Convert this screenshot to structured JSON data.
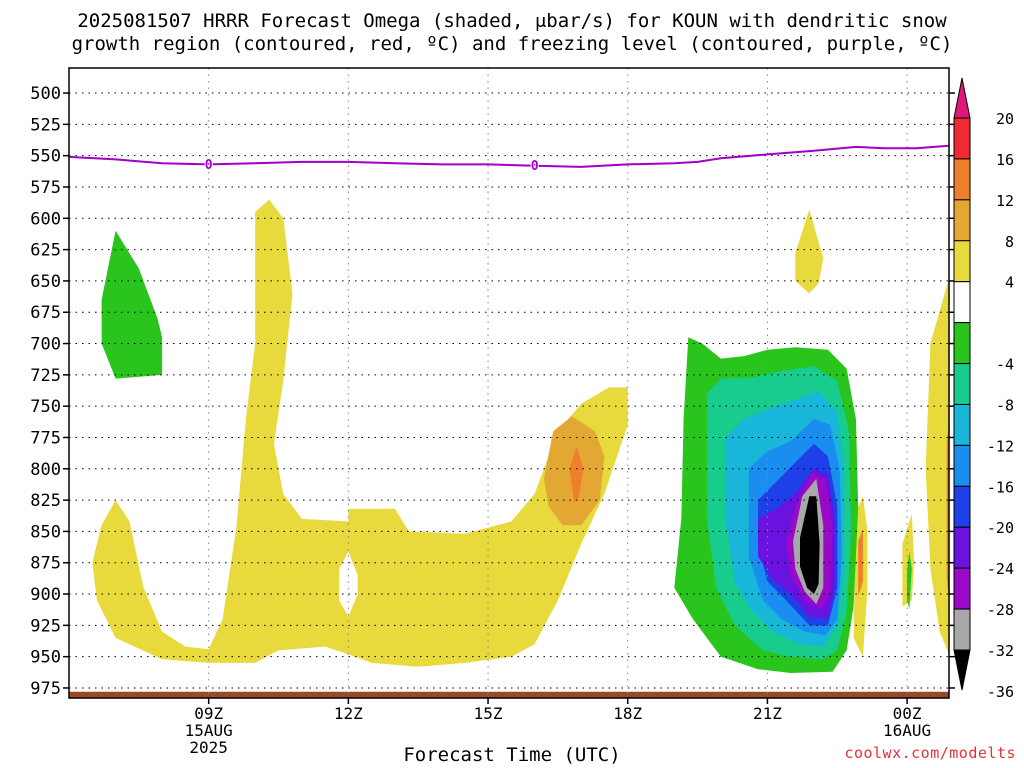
{
  "chart_data": {
    "type": "heatmap",
    "title_line1": "2025081507 HRRR Forecast Omega (shaded, μbar/s) for KOUN with dendritic snow",
    "title_line2": "growth region (contoured, red, ºC) and freezing level (contoured, purple, ºC)",
    "xlabel": "Forecast Time (UTC)",
    "ylabel": "",
    "y_axis": {
      "ticks": [
        500,
        525,
        550,
        575,
        600,
        625,
        650,
        675,
        700,
        725,
        750,
        775,
        800,
        825,
        850,
        875,
        900,
        925,
        950,
        975
      ],
      "range": [
        480,
        983
      ],
      "inverted": true
    },
    "x_axis": {
      "range_hours": [
        6.0,
        24.9
      ],
      "ticks": [
        {
          "h": 9,
          "lines": [
            "09Z",
            "15AUG",
            "2025"
          ]
        },
        {
          "h": 12,
          "lines": [
            "12Z"
          ]
        },
        {
          "h": 15,
          "lines": [
            "15Z"
          ]
        },
        {
          "h": 18,
          "lines": [
            "18Z"
          ]
        },
        {
          "h": 21,
          "lines": [
            "21Z"
          ]
        },
        {
          "h": 24,
          "lines": [
            "00Z",
            "16AUG"
          ]
        }
      ]
    },
    "grid": true,
    "freezing_level": {
      "label": "0",
      "color": "#a000c8",
      "points": [
        [
          6.0,
          551
        ],
        [
          7.0,
          553
        ],
        [
          8.0,
          556
        ],
        [
          9.0,
          557
        ],
        [
          10.0,
          556
        ],
        [
          11.0,
          555
        ],
        [
          12.0,
          555
        ],
        [
          13.0,
          556
        ],
        [
          14.0,
          557
        ],
        [
          15.0,
          557
        ],
        [
          16.0,
          558
        ],
        [
          17.0,
          559
        ],
        [
          18.0,
          557
        ],
        [
          19.0,
          556
        ],
        [
          19.5,
          555
        ],
        [
          20.0,
          552
        ],
        [
          21.0,
          549
        ],
        [
          22.0,
          546
        ],
        [
          22.9,
          543
        ],
        [
          23.5,
          544
        ],
        [
          24.2,
          544
        ],
        [
          24.9,
          542
        ]
      ],
      "label_positions": [
        [
          9.0,
          557
        ],
        [
          16.0,
          558
        ]
      ]
    },
    "omega_regions": [
      {
        "level": "0 to 4",
        "color": "#ffffff",
        "points": []
      },
      {
        "level": "4 to 8",
        "color": "#e8da3c",
        "points": [
          [
            6.5,
            875
          ],
          [
            6.7,
            845
          ],
          [
            7.0,
            825
          ],
          [
            7.3,
            842
          ],
          [
            7.6,
            895
          ],
          [
            8.0,
            930
          ],
          [
            8.5,
            942
          ],
          [
            9.0,
            944
          ],
          [
            9.3,
            920
          ],
          [
            9.6,
            845
          ],
          [
            9.8,
            760
          ],
          [
            10.0,
            700
          ],
          [
            10.0,
            595
          ],
          [
            10.3,
            585
          ],
          [
            10.6,
            600
          ],
          [
            10.8,
            660
          ],
          [
            10.6,
            730
          ],
          [
            10.4,
            780
          ],
          [
            10.6,
            820
          ],
          [
            11.0,
            840
          ],
          [
            12.0,
            842
          ],
          [
            12.0,
            832
          ],
          [
            13.0,
            832
          ],
          [
            13.3,
            850
          ],
          [
            14.5,
            852
          ],
          [
            15.5,
            842
          ],
          [
            16.0,
            820
          ],
          [
            16.5,
            770
          ],
          [
            17.0,
            748
          ],
          [
            17.6,
            735
          ],
          [
            18.0,
            735
          ],
          [
            18.0,
            765
          ],
          [
            17.5,
            820
          ],
          [
            17.0,
            860
          ],
          [
            16.5,
            905
          ],
          [
            16.0,
            940
          ],
          [
            15.5,
            950
          ],
          [
            14.5,
            955
          ],
          [
            13.5,
            958
          ],
          [
            12.5,
            955
          ],
          [
            12.0,
            948
          ],
          [
            11.5,
            942
          ],
          [
            10.5,
            945
          ],
          [
            10.0,
            955
          ],
          [
            9.0,
            955
          ],
          [
            8.0,
            952
          ],
          [
            7.0,
            935
          ],
          [
            6.6,
            905
          ]
        ]
      },
      {
        "level": "4 to 8",
        "color": "#e8da3c",
        "points": [
          [
            21.6,
            628
          ],
          [
            21.9,
            593
          ],
          [
            22.2,
            632
          ],
          [
            22.1,
            652
          ],
          [
            21.9,
            660
          ],
          [
            21.6,
            650
          ]
        ]
      },
      {
        "level": "4 to 8",
        "color": "#e8da3c",
        "points": [
          [
            23.9,
            860
          ],
          [
            24.1,
            836
          ],
          [
            24.15,
            875
          ],
          [
            24.1,
            905
          ],
          [
            23.9,
            910
          ]
        ]
      },
      {
        "level": "4 to 8",
        "color": "#e8da3c",
        "points": [
          [
            24.9,
            648
          ],
          [
            24.5,
            700
          ],
          [
            24.4,
            800
          ],
          [
            24.5,
            880
          ],
          [
            24.7,
            930
          ],
          [
            24.9,
            948
          ]
        ]
      },
      {
        "level": "4 to 8",
        "color": "#e8da3c",
        "points": [
          [
            22.9,
            835
          ],
          [
            23.05,
            822
          ],
          [
            23.15,
            850
          ],
          [
            23.15,
            895
          ],
          [
            23.05,
            950
          ],
          [
            22.85,
            935
          ]
        ]
      },
      {
        "level": "0 to 4",
        "color": "#ffffff",
        "points": [
          [
            11.8,
            880
          ],
          [
            12.0,
            866
          ],
          [
            12.2,
            885
          ],
          [
            12.2,
            900
          ],
          [
            12.0,
            918
          ],
          [
            11.8,
            905
          ]
        ]
      },
      {
        "level": "8 to 12",
        "color": "#e3a833",
        "points": [
          [
            16.2,
            808
          ],
          [
            16.4,
            770
          ],
          [
            16.8,
            758
          ],
          [
            17.3,
            770
          ],
          [
            17.5,
            790
          ],
          [
            17.4,
            825
          ],
          [
            17.0,
            845
          ],
          [
            16.6,
            845
          ],
          [
            16.3,
            830
          ]
        ]
      },
      {
        "level": "12 to 16",
        "color": "#ee7f2c",
        "points": [
          [
            16.75,
            800
          ],
          [
            16.9,
            782
          ],
          [
            17.05,
            800
          ],
          [
            16.95,
            823
          ],
          [
            16.85,
            827
          ]
        ]
      },
      {
        "level": "12 to 16",
        "color": "#ee7f2c",
        "points": [
          [
            22.95,
            858
          ],
          [
            23.05,
            848
          ],
          [
            23.05,
            890
          ],
          [
            22.95,
            902
          ]
        ]
      },
      {
        "level": "12 to 16",
        "color": "#ee7f2c",
        "points": [
          [
            24.85,
            780
          ],
          [
            24.9,
            762
          ],
          [
            24.9,
            905
          ],
          [
            24.85,
            888
          ]
        ]
      },
      {
        "level": "-8 to -4",
        "color": "#29c41c",
        "points": [
          [
            6.7,
            665
          ],
          [
            7.0,
            610
          ],
          [
            7.5,
            640
          ],
          [
            7.9,
            680
          ],
          [
            8.0,
            695
          ],
          [
            8.0,
            725
          ],
          [
            7.0,
            728
          ],
          [
            6.7,
            700
          ]
        ]
      },
      {
        "level": "-8 to -4",
        "color": "#29c41c",
        "points": [
          [
            24.0,
            880
          ],
          [
            24.05,
            866
          ],
          [
            24.1,
            880
          ],
          [
            24.05,
            912
          ],
          [
            24.0,
            905
          ]
        ]
      },
      {
        "level": "-8 to -4",
        "color": "#29c41c",
        "points": [
          [
            19.3,
            695
          ],
          [
            19.6,
            700
          ],
          [
            20.0,
            712
          ],
          [
            20.5,
            710
          ],
          [
            21.0,
            705
          ],
          [
            21.6,
            703
          ],
          [
            22.3,
            705
          ],
          [
            22.7,
            720
          ],
          [
            22.9,
            760
          ],
          [
            22.95,
            830
          ],
          [
            22.85,
            910
          ],
          [
            22.7,
            945
          ],
          [
            22.4,
            962
          ],
          [
            21.5,
            963
          ],
          [
            20.8,
            960
          ],
          [
            20.0,
            950
          ],
          [
            19.4,
            920
          ],
          [
            19.0,
            895
          ],
          [
            19.15,
            840
          ],
          [
            19.2,
            760
          ]
        ]
      },
      {
        "level": "-12 to -8",
        "color": "#18cc8e",
        "points": [
          [
            19.7,
            740
          ],
          [
            20.0,
            728
          ],
          [
            20.7,
            727
          ],
          [
            21.3,
            722
          ],
          [
            22.0,
            718
          ],
          [
            22.5,
            730
          ],
          [
            22.75,
            770
          ],
          [
            22.8,
            850
          ],
          [
            22.7,
            915
          ],
          [
            22.5,
            945
          ],
          [
            22.2,
            952
          ],
          [
            21.5,
            950
          ],
          [
            20.9,
            945
          ],
          [
            20.3,
            925
          ],
          [
            19.9,
            895
          ],
          [
            19.7,
            840
          ]
        ]
      },
      {
        "level": "-16 to -12",
        "color": "#18b6d8",
        "points": [
          [
            20.1,
            775
          ],
          [
            20.5,
            760
          ],
          [
            21.0,
            752
          ],
          [
            21.6,
            745
          ],
          [
            22.1,
            738
          ],
          [
            22.5,
            755
          ],
          [
            22.65,
            800
          ],
          [
            22.65,
            880
          ],
          [
            22.5,
            925
          ],
          [
            22.2,
            942
          ],
          [
            21.7,
            940
          ],
          [
            21.1,
            930
          ],
          [
            20.6,
            910
          ],
          [
            20.3,
            890
          ],
          [
            20.1,
            840
          ]
        ]
      },
      {
        "level": "-20 to -16",
        "color": "#1a8ef0",
        "points": [
          [
            20.6,
            800
          ],
          [
            21.0,
            786
          ],
          [
            21.5,
            778
          ],
          [
            22.0,
            760
          ],
          [
            22.35,
            765
          ],
          [
            22.55,
            800
          ],
          [
            22.6,
            870
          ],
          [
            22.5,
            920
          ],
          [
            22.25,
            933
          ],
          [
            21.8,
            930
          ],
          [
            21.3,
            920
          ],
          [
            20.9,
            905
          ],
          [
            20.6,
            870
          ]
        ]
      },
      {
        "level": "-24 to -20",
        "color": "#1f3fe8",
        "points": [
          [
            20.8,
            825
          ],
          [
            21.2,
            810
          ],
          [
            21.6,
            795
          ],
          [
            22.0,
            780
          ],
          [
            22.3,
            790
          ],
          [
            22.5,
            830
          ],
          [
            22.5,
            895
          ],
          [
            22.3,
            925
          ],
          [
            21.9,
            925
          ],
          [
            21.4,
            905
          ],
          [
            21.0,
            890
          ],
          [
            20.8,
            860
          ]
        ]
      },
      {
        "level": "-28 to -24",
        "color": "#6a12e0",
        "points": [
          [
            20.8,
            840
          ],
          [
            21.2,
            832
          ],
          [
            21.6,
            820
          ],
          [
            22.0,
            800
          ],
          [
            22.3,
            805
          ],
          [
            22.45,
            840
          ],
          [
            22.45,
            895
          ],
          [
            22.3,
            920
          ],
          [
            21.9,
            918
          ],
          [
            21.5,
            900
          ],
          [
            21.1,
            888
          ],
          [
            20.8,
            870
          ]
        ]
      },
      {
        "level": "-32 to -28",
        "color": "#9a08c8",
        "points": [
          [
            21.4,
            860
          ],
          [
            21.6,
            830
          ],
          [
            21.95,
            803
          ],
          [
            22.25,
            808
          ],
          [
            22.4,
            845
          ],
          [
            22.35,
            900
          ],
          [
            22.15,
            912
          ],
          [
            21.8,
            905
          ],
          [
            21.5,
            885
          ]
        ]
      },
      {
        "level": "-36 to -32",
        "color": "#a8a8a8",
        "points": [
          [
            21.55,
            858
          ],
          [
            21.75,
            822
          ],
          [
            22.05,
            808
          ],
          [
            22.2,
            845
          ],
          [
            22.2,
            895
          ],
          [
            22.05,
            908
          ],
          [
            21.8,
            898
          ],
          [
            21.6,
            880
          ]
        ]
      },
      {
        "level": "< -36",
        "color": "#000000",
        "points": [
          [
            21.7,
            855
          ],
          [
            21.9,
            822
          ],
          [
            22.05,
            822
          ],
          [
            22.12,
            860
          ],
          [
            22.1,
            892
          ],
          [
            22.0,
            900
          ],
          [
            21.85,
            895
          ],
          [
            21.7,
            878
          ]
        ]
      }
    ],
    "surface_band": {
      "color": "#9a4a28",
      "pressure_top": 978,
      "pressure_bottom": 983
    },
    "colorbar": {
      "labels": [
        "20",
        "16",
        "12",
        "8",
        "4",
        "-4",
        "-8",
        "-12",
        "-16",
        "-20",
        "-24",
        "-28",
        "-32",
        "-36"
      ],
      "segments": [
        {
          "color": "#e0187c"
        },
        {
          "color": "#ee2b35"
        },
        {
          "color": "#ee7f2c"
        },
        {
          "color": "#e3a833"
        },
        {
          "color": "#e8da3c"
        },
        {
          "color": "#ffffff"
        },
        {
          "color": "#29c41c"
        },
        {
          "color": "#18cc8e"
        },
        {
          "color": "#18b6d8"
        },
        {
          "color": "#1a8ef0"
        },
        {
          "color": "#1f3fe8"
        },
        {
          "color": "#6a12e0"
        },
        {
          "color": "#9a08c8"
        },
        {
          "color": "#a8a8a8"
        },
        {
          "color": "#000000"
        }
      ]
    }
  },
  "credit": "coolwx.com/modelts"
}
